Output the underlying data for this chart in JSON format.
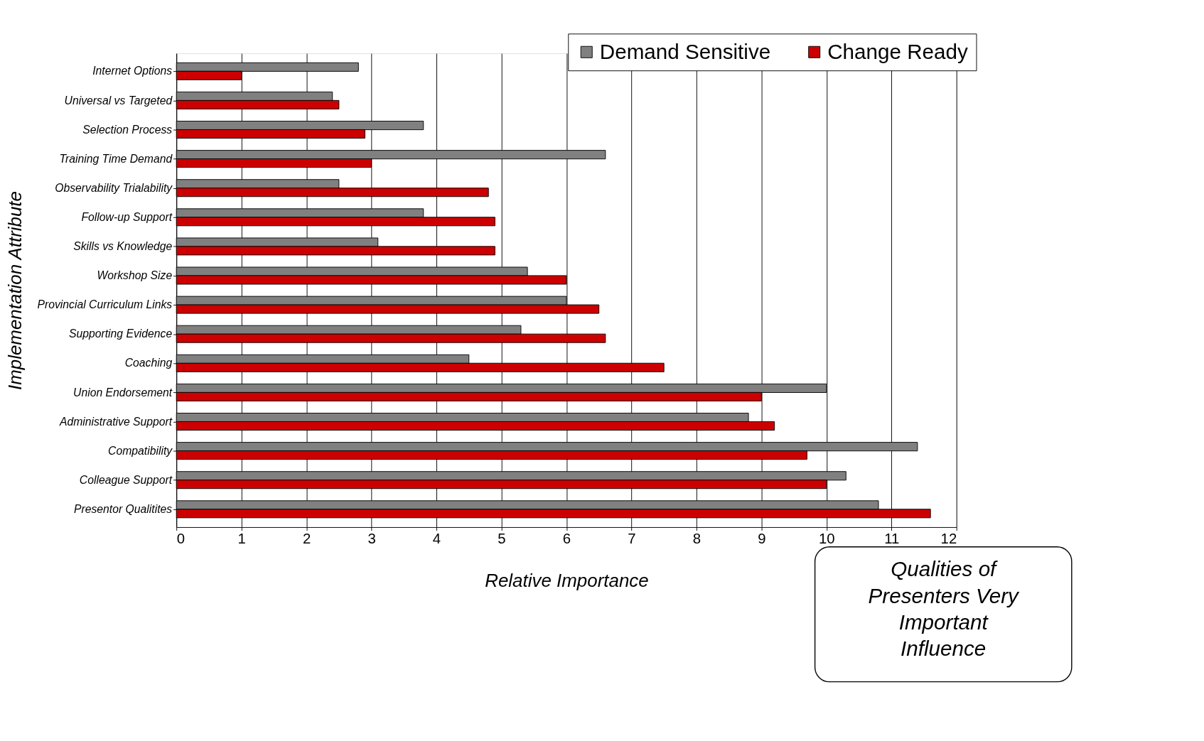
{
  "chart_data": {
    "type": "bar",
    "orientation": "horizontal",
    "xlabel": "Relative Importance",
    "ylabel": "Implementation Attribute",
    "categories": [
      "Internet Options",
      "Universal vs Targeted",
      "Selection Process",
      "Training Time Demand",
      "Observability Trialability",
      "Follow-up Support",
      "Skills vs Knowledge",
      "Workshop Size",
      "Provincial Curriculum Links",
      "Supporting Evidence",
      "Coaching",
      "Union Endorsement",
      "Administrative Support",
      "Compatibility",
      "Colleague Support",
      "Presentor Qualitites"
    ],
    "series": [
      {
        "name": "Demand Sensitive",
        "color": "#808080",
        "values": [
          2.8,
          2.4,
          3.8,
          6.6,
          2.5,
          3.8,
          3.1,
          5.4,
          6.0,
          5.3,
          4.5,
          10.0,
          8.8,
          11.4,
          10.3,
          10.8
        ]
      },
      {
        "name": "Change Ready",
        "color": "#cc0000",
        "values": [
          1.0,
          2.5,
          2.9,
          3.0,
          4.8,
          4.9,
          4.9,
          6.0,
          6.5,
          6.6,
          7.5,
          9.0,
          9.2,
          9.7,
          10.0,
          11.6
        ]
      }
    ],
    "xlim": [
      0,
      12
    ],
    "xticks": [
      0,
      1,
      2,
      3,
      4,
      5,
      6,
      7,
      8,
      9,
      10,
      11,
      12
    ],
    "grid": "x",
    "legend": "top right",
    "annotations": [
      "Qualities of Presenters Very Important Influence"
    ]
  }
}
